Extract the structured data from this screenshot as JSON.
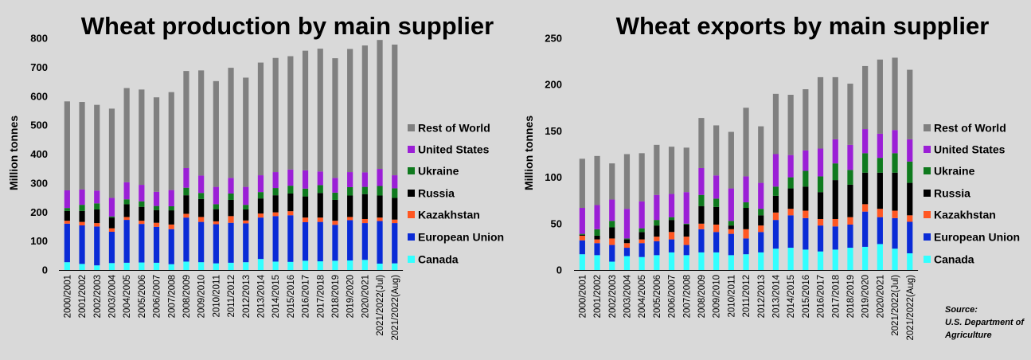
{
  "chart_data": [
    {
      "type": "bar",
      "stacked": true,
      "title": "Wheat production by main supplier",
      "ylabel": "Million tonnes",
      "ylim": [
        0,
        800
      ],
      "yticks": [
        0,
        100,
        200,
        300,
        400,
        500,
        600,
        700,
        800
      ],
      "grid": false,
      "legend_position": "right",
      "categories": [
        "2000/2001",
        "2001/2002",
        "2002/2003",
        "2003/2004",
        "2004/2005",
        "2005/2006",
        "2006/2007",
        "2007/2008",
        "2008/2009",
        "2009/2010",
        "2010/2011",
        "2011/2012",
        "2012/2013",
        "2013/2014",
        "2014/2015",
        "2015/2016",
        "2016/2017",
        "2017/2018",
        "2018/2019",
        "2019/2020",
        "2020/2021",
        "2021/2022(Jul)",
        "2021/2022(Aug)"
      ],
      "series": [
        {
          "name": "Canada",
          "color": "#33ffff",
          "values": [
            27,
            21,
            16,
            24,
            25,
            26,
            25,
            20,
            29,
            27,
            23,
            25,
            27,
            38,
            29,
            28,
            32,
            30,
            32,
            33,
            35,
            22,
            23
          ]
        },
        {
          "name": "European Union",
          "color": "#0a2bd6",
          "values": [
            133,
            133,
            134,
            108,
            148,
            133,
            124,
            121,
            152,
            139,
            135,
            138,
            134,
            143,
            157,
            161,
            133,
            136,
            124,
            139,
            127,
            147,
            139
          ]
        },
        {
          "name": "Kazakhstan",
          "color": "#ff5722",
          "values": [
            10,
            12,
            12,
            12,
            10,
            11,
            14,
            16,
            13,
            17,
            10,
            23,
            10,
            14,
            13,
            14,
            16,
            15,
            14,
            11,
            14,
            12,
            12
          ]
        },
        {
          "name": "Russia",
          "color": "#000000",
          "values": [
            34,
            38,
            47,
            37,
            44,
            48,
            44,
            49,
            64,
            62,
            42,
            56,
            38,
            52,
            59,
            61,
            73,
            85,
            72,
            74,
            86,
            76,
            75
          ]
        },
        {
          "name": "Ukraine",
          "color": "#0f7a1e",
          "values": [
            10,
            21,
            21,
            4,
            17,
            19,
            14,
            14,
            26,
            21,
            17,
            22,
            16,
            22,
            25,
            27,
            27,
            27,
            25,
            29,
            25,
            33,
            33
          ]
        },
        {
          "name": "United States",
          "color": "#9b1fd6",
          "values": [
            61,
            53,
            44,
            64,
            59,
            57,
            49,
            56,
            68,
            60,
            60,
            54,
            62,
            58,
            55,
            56,
            63,
            47,
            51,
            52,
            50,
            59,
            45
          ]
        },
        {
          "name": "Rest of World",
          "color": "#808080",
          "values": [
            307,
            302,
            296,
            308,
            325,
            329,
            326,
            338,
            335,
            363,
            365,
            380,
            377,
            389,
            394,
            391,
            413,
            424,
            413,
            425,
            438,
            445,
            451
          ]
        }
      ]
    },
    {
      "type": "bar",
      "stacked": true,
      "title": "Wheat exports by main supplier",
      "ylabel": "Million tonnes",
      "ylim": [
        0,
        250
      ],
      "yticks": [
        0,
        50,
        100,
        150,
        200,
        250
      ],
      "grid": false,
      "legend_position": "right",
      "categories": [
        "2000/2001",
        "2001/2002",
        "2002/2003",
        "2003/2004",
        "2004/2005",
        "2005/2006",
        "2006/2007",
        "2007/2008",
        "2008/2009",
        "2009/2010",
        "2010/2011",
        "2011/2012",
        "2012/2013",
        "2013/2014",
        "2014/2015",
        "2015/2016",
        "2016/2017",
        "2017/2018",
        "2018/2019",
        "2019/2020",
        "2020/2021",
        "2021/2022(Jul)",
        "2021/2022(Aug)"
      ],
      "series": [
        {
          "name": "Canada",
          "color": "#33ffff",
          "values": [
            17,
            16,
            9,
            15,
            14,
            16,
            19,
            16,
            19,
            19,
            16,
            17,
            19,
            23,
            24,
            22,
            20,
            22,
            24,
            25,
            28,
            23,
            18
          ]
        },
        {
          "name": "European Union",
          "color": "#0a2bd6",
          "values": [
            15,
            13,
            18,
            9,
            15,
            15,
            14,
            11,
            25,
            22,
            23,
            17,
            22,
            31,
            35,
            34,
            28,
            25,
            25,
            38,
            29,
            33,
            34
          ]
        },
        {
          "name": "Kazakhstan",
          "color": "#ff5722",
          "values": [
            5,
            4,
            7,
            5,
            4,
            5,
            8,
            9,
            6,
            8,
            5,
            10,
            7,
            8,
            7,
            8,
            7,
            8,
            8,
            8,
            9,
            8,
            7
          ]
        },
        {
          "name": "Russia",
          "color": "#000000",
          "values": [
            1,
            4,
            12,
            4,
            8,
            12,
            13,
            13,
            19,
            19,
            4,
            23,
            11,
            18,
            22,
            26,
            29,
            42,
            35,
            34,
            39,
            41,
            35
          ]
        },
        {
          "name": "Ukraine",
          "color": "#0f7a1e",
          "values": [
            1,
            7,
            7,
            1,
            4,
            6,
            3,
            1,
            12,
            9,
            5,
            6,
            7,
            10,
            12,
            17,
            17,
            18,
            16,
            21,
            16,
            21,
            23
          ]
        },
        {
          "name": "United States",
          "color": "#9b1fd6",
          "values": [
            28,
            26,
            23,
            32,
            29,
            27,
            25,
            34,
            29,
            25,
            35,
            28,
            28,
            35,
            24,
            22,
            30,
            26,
            27,
            26,
            26,
            25,
            24
          ]
        },
        {
          "name": "Rest of World",
          "color": "#808080",
          "values": [
            53,
            53,
            39,
            59,
            52,
            54,
            51,
            48,
            54,
            54,
            61,
            74,
            61,
            65,
            65,
            66,
            77,
            67,
            66,
            68,
            80,
            78,
            75
          ]
        }
      ]
    }
  ],
  "source": {
    "line1": "Source:",
    "line2": "U.S. Department of",
    "line3": "Agriculture"
  }
}
